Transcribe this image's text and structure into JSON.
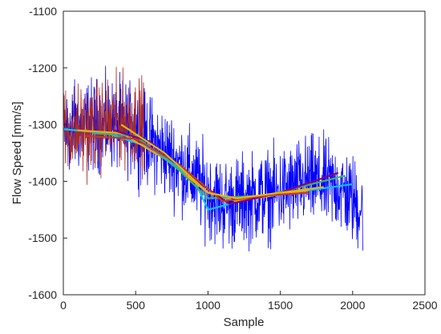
{
  "chart_data": {
    "type": "line",
    "title": "",
    "xlabel": "Sample",
    "ylabel": "Flow Speed [mm/s]",
    "xlim": [
      0,
      2500
    ],
    "ylim": [
      -1600,
      -1100
    ],
    "xticks": [
      0,
      500,
      1000,
      1500,
      2000,
      2500
    ],
    "yticks": [
      -1100,
      -1200,
      -1300,
      -1400,
      -1500,
      -1600
    ],
    "xtick_labels": [
      "0",
      "500",
      "1000",
      "1500",
      "2000",
      "2500"
    ],
    "ytick_labels": [
      "-1100",
      "-1200",
      "-1300",
      "-1400",
      "-1500",
      "-1600"
    ],
    "grid": false,
    "series": [
      {
        "color": "#0000ff",
        "style": "noisy",
        "x_range": [
          0,
          2070
        ],
        "trend": [
          [
            0,
            -1310
          ],
          [
            200,
            -1300
          ],
          [
            400,
            -1300
          ],
          [
            600,
            -1330
          ],
          [
            800,
            -1370
          ],
          [
            1000,
            -1420
          ],
          [
            1100,
            -1440
          ],
          [
            1300,
            -1430
          ],
          [
            1500,
            -1420
          ],
          [
            1700,
            -1400
          ],
          [
            1900,
            -1410
          ],
          [
            2070,
            -1450
          ]
        ],
        "amplitude": 55,
        "points": 2070
      },
      {
        "color": "#a52a2a",
        "style": "noisy",
        "x_range": [
          0,
          560
        ],
        "trend": [
          [
            0,
            -1310
          ],
          [
            150,
            -1310
          ],
          [
            300,
            -1300
          ],
          [
            450,
            -1290
          ],
          [
            560,
            -1300
          ]
        ],
        "amplitude": 55,
        "points": 560
      },
      {
        "color": "#00c8ff",
        "style": "smooth",
        "points_xy": [
          [
            0,
            -1308
          ],
          [
            300,
            -1315
          ],
          [
            600,
            -1340
          ],
          [
            900,
            -1395
          ],
          [
            1000,
            -1450
          ],
          [
            1300,
            -1430
          ],
          [
            2000,
            -1405
          ]
        ]
      },
      {
        "color": "#ffa500",
        "style": "smooth",
        "points_xy": [
          [
            100,
            -1310
          ],
          [
            400,
            -1315
          ],
          [
            700,
            -1360
          ],
          [
            1000,
            -1420
          ],
          [
            1200,
            -1435
          ],
          [
            1700,
            -1415
          ]
        ]
      },
      {
        "color": "#3cb371",
        "style": "smooth",
        "points_xy": [
          [
            200,
            -1315
          ],
          [
            500,
            -1320
          ],
          [
            800,
            -1380
          ],
          [
            1000,
            -1430
          ],
          [
            1400,
            -1425
          ],
          [
            1950,
            -1390
          ]
        ]
      },
      {
        "color": "#800080",
        "style": "smooth",
        "points_xy": [
          [
            350,
            -1310
          ],
          [
            600,
            -1330
          ],
          [
            900,
            -1395
          ],
          [
            1150,
            -1440
          ],
          [
            1500,
            -1420
          ],
          [
            1900,
            -1385
          ]
        ]
      },
      {
        "color": "#c0392b",
        "style": "smooth",
        "points_xy": [
          [
            150,
            -1320
          ],
          [
            500,
            -1325
          ],
          [
            800,
            -1370
          ],
          [
            1100,
            -1435
          ],
          [
            1400,
            -1425
          ],
          [
            1700,
            -1420
          ]
        ]
      },
      {
        "color": "#e6b800",
        "style": "smooth",
        "points_xy": [
          [
            400,
            -1300
          ],
          [
            700,
            -1350
          ],
          [
            1000,
            -1420
          ],
          [
            1200,
            -1430
          ],
          [
            1800,
            -1410
          ]
        ]
      }
    ]
  }
}
